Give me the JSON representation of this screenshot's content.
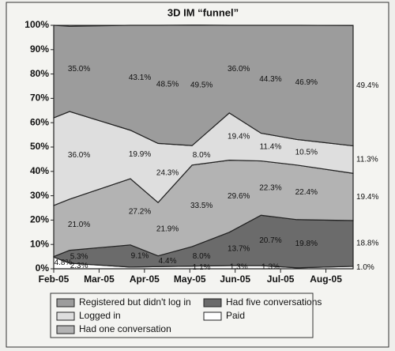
{
  "chart_data": {
    "type": "stacked-area",
    "title": "3D IM “funnel”",
    "x": [
      0,
      0.35,
      1.69,
      2.3,
      3.05,
      3.87,
      4.57,
      5.36,
      6.6
    ],
    "xlim": [
      0,
      6.6
    ],
    "xticks": [
      {
        "value": 0,
        "label": "Feb-05"
      },
      {
        "value": 1,
        "label": "Mar-05"
      },
      {
        "value": 2,
        "label": "Apr-05"
      },
      {
        "value": 3,
        "label": "May-05"
      },
      {
        "value": 4,
        "label": "Jun-05"
      },
      {
        "value": 5,
        "label": "Jul-05"
      },
      {
        "value": 6,
        "label": "Aug-05"
      }
    ],
    "ylim": [
      0,
      100
    ],
    "yticks": [
      {
        "value": 0,
        "label": "0%"
      },
      {
        "value": 10,
        "label": "10%"
      },
      {
        "value": 20,
        "label": "20%"
      },
      {
        "value": 30,
        "label": "30%"
      },
      {
        "value": 40,
        "label": "40%"
      },
      {
        "value": 50,
        "label": "50%"
      },
      {
        "value": 60,
        "label": "60%"
      },
      {
        "value": 70,
        "label": "70%"
      },
      {
        "value": 80,
        "label": "80%"
      },
      {
        "value": 90,
        "label": "90%"
      },
      {
        "value": 100,
        "label": "100%"
      }
    ],
    "series": [
      {
        "name": "Paid",
        "color": "#ffffff",
        "values": [
          4.8,
          2.3,
          0.7,
          0.9,
          1.1,
          1.3,
          1.3,
          0.4,
          1.0
        ],
        "value_labels": [
          "4.8%",
          "2.3%",
          null,
          null,
          "1.1%",
          "1.3%",
          "1.3%",
          null,
          "1.0%"
        ]
      },
      {
        "name": "Had five conversations",
        "color": "#6b6b6b",
        "values": [
          0.2,
          5.3,
          9.1,
          4.4,
          8.0,
          13.7,
          20.7,
          19.8,
          18.8
        ],
        "value_labels": [
          null,
          "5.3%",
          "9.1%",
          "4.4%",
          "8.0%",
          "13.7%",
          "20.7%",
          "19.8%",
          "18.8%"
        ]
      },
      {
        "name": "Had one conversation",
        "color": "#b3b3b3",
        "values": [
          21.0,
          21.0,
          27.2,
          21.9,
          33.5,
          29.6,
          22.3,
          22.4,
          19.4
        ],
        "value_labels": [
          null,
          "21.0%",
          "27.2%",
          "21.9%",
          "33.5%",
          "29.6%",
          "22.3%",
          "22.4%",
          "19.4%"
        ]
      },
      {
        "name": "Logged in",
        "color": "#dedede",
        "values": [
          36.0,
          36.0,
          19.9,
          24.3,
          8.0,
          19.4,
          11.4,
          10.5,
          11.3
        ],
        "value_labels": [
          null,
          "36.0%",
          "19.9%",
          "24.3%",
          "8.0%",
          "19.4%",
          "11.4%",
          "10.5%",
          "11.3%"
        ]
      },
      {
        "name": "Registered but didn't log in",
        "color": "#9c9c9c",
        "values": [
          38.0,
          35.0,
          43.1,
          48.5,
          49.5,
          36.0,
          44.3,
          46.9,
          49.4
        ],
        "value_labels": [
          null,
          "35.0%",
          "43.1%",
          "48.5%",
          "49.5%",
          "36.0%",
          "44.3%",
          "46.9%",
          "49.4%"
        ]
      }
    ]
  }
}
